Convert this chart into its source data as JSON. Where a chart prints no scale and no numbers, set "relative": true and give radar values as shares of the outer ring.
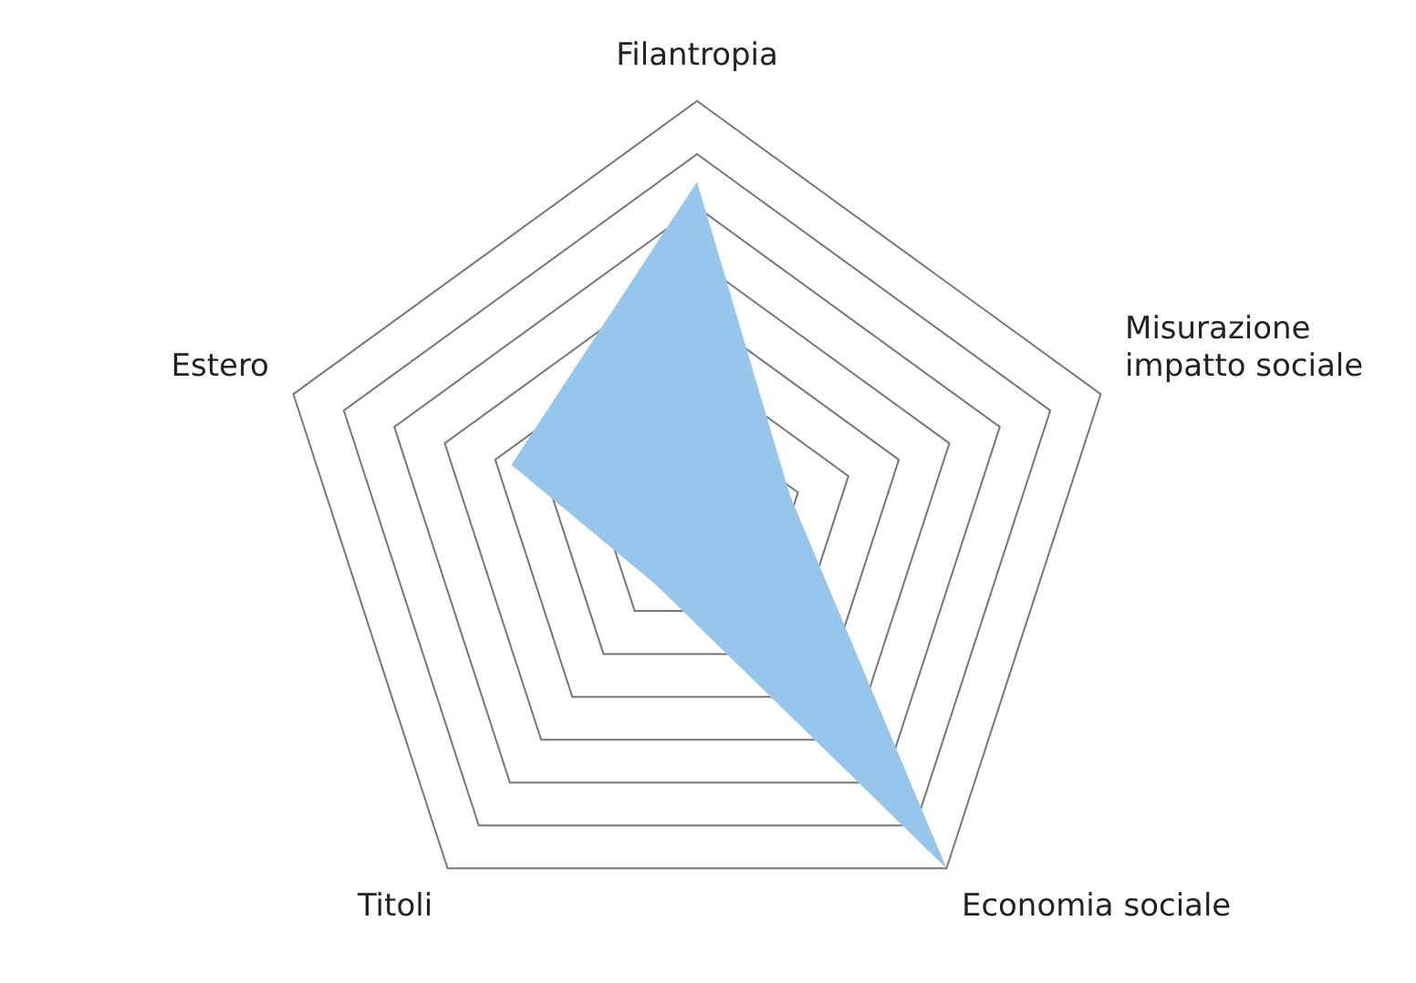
{
  "chart_data": {
    "type": "radar",
    "relative": true,
    "categories": [
      "Filantropia",
      "Misurazione impatto sociale",
      "Economia sociale",
      "Titoli",
      "Estero"
    ],
    "series": [
      {
        "color": "#96c6ec",
        "values": [
          0.81,
          0.23,
          1,
          0.17,
          0.46
        ]
      }
    ]
  }
}
